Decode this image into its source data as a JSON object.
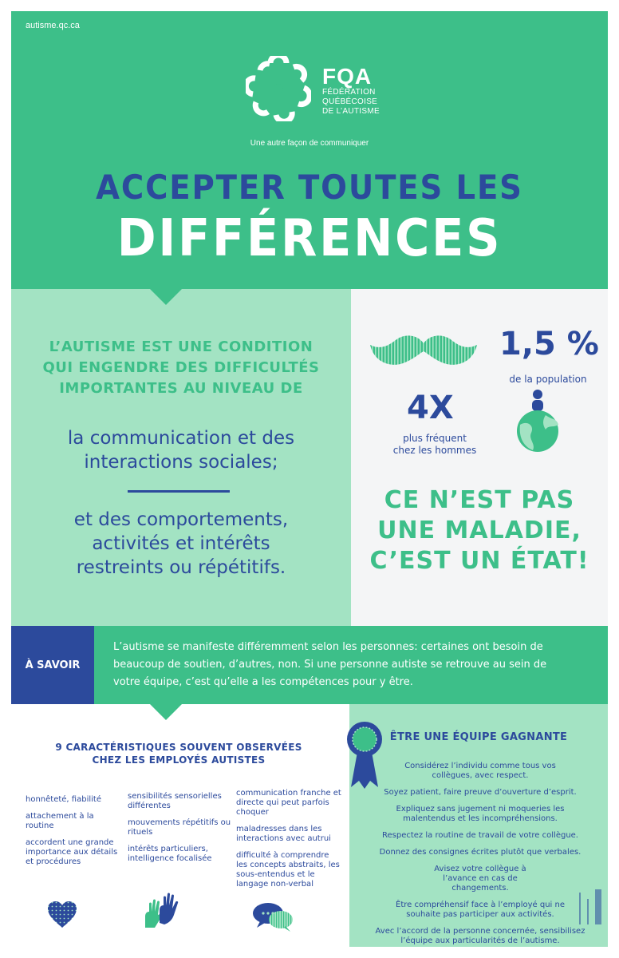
{
  "header": {
    "site_url": "autisme.qc.ca",
    "logo": {
      "abbr": "FQA",
      "line1": "FÉDÉRATION",
      "line2": "QUÉBÉCOISE",
      "line3": "DE L’AUTISME"
    },
    "tagline": "Une autre façon de communiquer",
    "title_line1": "ACCEPTER TOUTES LES",
    "title_line2": "DIFFÉRENCES"
  },
  "definition": {
    "lead_line1": "L’AUTISME EST UNE CONDITION",
    "lead_line2": "QUI ENGENDRE DES DIFFICULTÉS",
    "lead_line3": "IMPORTANTES AU NIVEAU DE",
    "item1_line1": "la communication et des",
    "item1_line2": "interactions sociales;",
    "item2_line1": "et des comportements,",
    "item2_line2": "activités et intérêts",
    "item2_line3": "restreints ou répétitifs."
  },
  "facts": {
    "ratio": "4X",
    "ratio_caption_line1": "plus fréquent",
    "ratio_caption_line2": "chez les hommes",
    "prevalence": "1,5 %",
    "prevalence_caption": "de la population",
    "statement_line1": "CE N’EST PAS",
    "statement_line2": "UNE MALADIE,",
    "statement_line3": "C’EST UN ÉTAT!",
    "icons": [
      "mustache-icon",
      "person-on-globe-icon"
    ]
  },
  "savoir": {
    "label": "À SAVOIR",
    "text_line1": "L’autisme se manifeste différemment selon les personnes: certaines ont besoin de",
    "text_line2": "beaucoup de soutien, d’autres, non. Si une personne autiste se retrouve au sein de",
    "text_line3": "votre équipe, c’est qu’elle a les compétences pour y être."
  },
  "traits": {
    "title_line1": "9 CARACTÉRISTIQUES SOUVENT OBSERVÉES",
    "title_line2": "CHEZ LES EMPLOYÉS AUTISTES",
    "col1": [
      "honnêteté, fiabilité",
      "attachement à la routine",
      "accordent une grande importance aux détails et procédures"
    ],
    "col2": [
      "sensibilités sensorielles différentes",
      "mouvements répétitifs ou rituels",
      "intérêts particuliers, intelligence focalisée"
    ],
    "col3": [
      "communication franche et directe qui peut parfois choquer",
      "maladresses dans les interactions avec autrui",
      "difficulté à comprendre les concepts abstraits, les sous-entendus et le langage non-verbal"
    ],
    "icons": [
      "heart-icon",
      "hands-icon",
      "speech-bubbles-icon"
    ]
  },
  "team": {
    "title": "ÊTRE UNE ÉQUIPE GAGNANTE",
    "tips": [
      "Considérez l’individu comme tous vos collègues, avec respect.",
      "Soyez patient, faire preuve d’ouverture d’esprit.",
      "Expliquez sans jugement ni moqueries les malentendus et les incompréhensions.",
      "Respectez la routine de travail de votre collègue.",
      "Donnez des consignes écrites plutôt que verbales.",
      "Avisez votre collègue à l’avance en cas de changements.",
      "Être compréhensif face à l’employé qui ne souhaite pas participer aux activités.",
      "Avec l’accord de la personne concernée, sensibilisez l’équipe aux particularités de l’autisme."
    ],
    "icons": [
      "award-ribbon-icon"
    ]
  },
  "colors": {
    "green": "#3dbf89",
    "light_green": "#a3e3c3",
    "navy": "#2c4a9c",
    "white": "#ffffff",
    "light_gray": "#f4f5f6"
  }
}
